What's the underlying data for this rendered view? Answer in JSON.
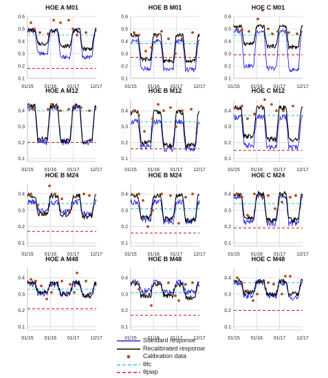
{
  "chart_data": {
    "type": "line",
    "layout_grid": "4 rows x 3 columns",
    "x_tick_labels": [
      "01/15",
      "01/16",
      "01/17",
      "12/17"
    ],
    "colors": {
      "standard": "#2020e0",
      "recalibrated": "#000000",
      "calibration": "#b4491c",
      "fc": "#40bfe0",
      "pwp": "#cc2020",
      "grid": "#c8c8c8"
    },
    "legend": [
      {
        "key": "standard",
        "label": "Standard response",
        "style": "solid-line"
      },
      {
        "key": "recalibrated",
        "label": "Recalibrated response",
        "style": "solid-line"
      },
      {
        "key": "calibration",
        "label": "Calibration data",
        "style": "dot"
      },
      {
        "key": "fc",
        "label": "θfc",
        "style": "dashed-line"
      },
      {
        "key": "pwp",
        "label": "θpwp",
        "style": "dashed-line"
      }
    ],
    "panels": [
      {
        "title": "HOE A M01",
        "yticks": [
          "0.6",
          "0.5",
          "0.4",
          "0.3",
          "0.2",
          "0.1"
        ],
        "ylim": [
          0.1,
          0.6
        ],
        "theta_fc": 0.45,
        "theta_pwp": 0.18,
        "standard": {
          "wet": 0.48,
          "dry": [
            0.3,
            0.27,
            0.27
          ]
        },
        "recalibrated": {
          "wet": 0.49,
          "dry": [
            0.38,
            0.36,
            0.34
          ]
        },
        "calibration": [
          [
            0.05,
            0.55
          ],
          [
            0.1,
            0.5
          ],
          [
            0.18,
            0.47
          ],
          [
            0.3,
            0.46
          ],
          [
            0.38,
            0.57
          ],
          [
            0.48,
            0.55
          ],
          [
            0.6,
            0.57
          ],
          [
            0.66,
            0.5
          ],
          [
            0.72,
            0.45
          ],
          [
            0.85,
            0.47
          ]
        ]
      },
      {
        "title": "HOE B M01",
        "yticks": [
          "0.6",
          "0.5",
          "0.4",
          "0.3",
          "0.2",
          "0.1"
        ],
        "ylim": [
          0.1,
          0.6
        ],
        "theta_fc": 0.38,
        "theta_pwp": 0.27,
        "standard": {
          "wet": 0.4,
          "dry": [
            0.18,
            0.17,
            0.17
          ]
        },
        "recalibrated": {
          "wet": 0.45,
          "dry": [
            0.25,
            0.24,
            0.24
          ]
        },
        "calibration": [
          [
            0.05,
            0.47
          ],
          [
            0.12,
            0.45
          ],
          [
            0.22,
            0.32
          ],
          [
            0.3,
            0.35
          ],
          [
            0.38,
            0.44
          ],
          [
            0.45,
            0.48
          ],
          [
            0.55,
            0.42
          ],
          [
            0.65,
            0.3
          ],
          [
            0.75,
            0.42
          ],
          [
            0.9,
            0.47
          ]
        ]
      },
      {
        "title": "HOE C M01",
        "yticks": [
          "0.6",
          "0.5",
          "0.4",
          "0.3",
          "0.2",
          "0.1"
        ],
        "ylim": [
          0.1,
          0.6
        ],
        "theta_fc": 0.45,
        "theta_pwp": 0.29,
        "standard": {
          "wet": 0.48,
          "dry": [
            0.2,
            0.18,
            0.17
          ]
        },
        "recalibrated": {
          "wet": 0.52,
          "dry": [
            0.38,
            0.36,
            0.35
          ]
        },
        "calibration": [
          [
            0.05,
            0.5
          ],
          [
            0.12,
            0.49
          ],
          [
            0.22,
            0.48
          ],
          [
            0.35,
            0.58
          ],
          [
            0.42,
            0.65
          ],
          [
            0.5,
            0.5
          ],
          [
            0.56,
            0.46
          ],
          [
            0.64,
            0.48
          ],
          [
            0.8,
            0.47
          ],
          [
            0.92,
            0.46
          ]
        ]
      },
      {
        "title": "HOE A M12",
        "yticks": [
          "0.4",
          "0.3",
          "0.2",
          "0.1"
        ],
        "ylim": [
          0.08,
          0.47
        ],
        "theta_fc": 0.4,
        "theta_pwp": 0.2,
        "standard": {
          "wet": 0.42,
          "dry": [
            0.2,
            0.2,
            0.2
          ]
        },
        "recalibrated": {
          "wet": 0.43,
          "dry": [
            0.22,
            0.21,
            0.21
          ]
        },
        "calibration": [
          [
            0.05,
            0.42
          ],
          [
            0.1,
            0.41
          ],
          [
            0.3,
            0.41
          ],
          [
            0.35,
            0.44
          ],
          [
            0.42,
            0.43
          ],
          [
            0.48,
            0.4
          ],
          [
            0.6,
            0.41
          ],
          [
            0.68,
            0.43
          ],
          [
            0.78,
            0.42
          ],
          [
            0.9,
            0.4
          ]
        ]
      },
      {
        "title": "HOE B M12",
        "yticks": [
          "0.4",
          "0.3",
          "0.2",
          "0.1"
        ],
        "ylim": [
          0.08,
          0.47
        ],
        "theta_fc": 0.33,
        "theta_pwp": 0.16,
        "standard": {
          "wet": 0.33,
          "dry": [
            0.17,
            0.16,
            0.16
          ]
        },
        "recalibrated": {
          "wet": 0.39,
          "dry": [
            0.2,
            0.18,
            0.18
          ]
        },
        "calibration": [
          [
            0.05,
            0.4
          ],
          [
            0.12,
            0.37
          ],
          [
            0.2,
            0.27
          ],
          [
            0.32,
            0.35
          ],
          [
            0.4,
            0.44
          ],
          [
            0.48,
            0.4
          ],
          [
            0.58,
            0.42
          ],
          [
            0.66,
            0.3
          ],
          [
            0.75,
            0.4
          ],
          [
            0.88,
            0.41
          ]
        ]
      },
      {
        "title": "HOE C M12",
        "yticks": [
          "0.4",
          "0.3",
          "0.2",
          "0.1"
        ],
        "ylim": [
          0.08,
          0.47
        ],
        "theta_fc": 0.37,
        "theta_pwp": 0.15,
        "standard": {
          "wet": 0.36,
          "dry": [
            0.18,
            0.17,
            0.17
          ]
        },
        "recalibrated": {
          "wet": 0.42,
          "dry": [
            0.24,
            0.22,
            0.22
          ]
        },
        "calibration": [
          [
            0.05,
            0.42
          ],
          [
            0.12,
            0.43
          ],
          [
            0.2,
            0.35
          ],
          [
            0.3,
            0.38
          ],
          [
            0.4,
            0.43
          ],
          [
            0.45,
            0.47
          ],
          [
            0.55,
            0.44
          ],
          [
            0.62,
            0.4
          ],
          [
            0.72,
            0.4
          ],
          [
            0.86,
            0.43
          ]
        ]
      },
      {
        "title": "HOE B M24",
        "yticks": [
          "0.4",
          "0.3",
          "0.2",
          "0.1"
        ],
        "ylim": [
          0.08,
          0.46
        ],
        "theta_fc": 0.34,
        "theta_pwp": 0.17,
        "standard": {
          "wet": 0.35,
          "dry": [
            0.3,
            0.29,
            0.28
          ]
        },
        "recalibrated": {
          "wet": 0.39,
          "dry": [
            0.28,
            0.27,
            0.26
          ]
        },
        "calibration": [
          [
            0.05,
            0.4
          ],
          [
            0.15,
            0.33
          ],
          [
            0.22,
            0.28
          ],
          [
            0.32,
            0.45
          ],
          [
            0.4,
            0.4
          ],
          [
            0.5,
            0.37
          ],
          [
            0.62,
            0.3
          ],
          [
            0.7,
            0.38
          ],
          [
            0.82,
            0.4
          ],
          [
            0.9,
            0.39
          ]
        ]
      },
      {
        "title": "HOE B M24",
        "yticks": [
          "0.4",
          "0.3",
          "0.2",
          "0.1"
        ],
        "ylim": [
          0.08,
          0.46
        ],
        "theta_fc": 0.31,
        "theta_pwp": 0.16,
        "standard": {
          "wet": 0.35,
          "dry": [
            0.24,
            0.23,
            0.23
          ]
        },
        "recalibrated": {
          "wet": 0.39,
          "dry": [
            0.26,
            0.25,
            0.24
          ]
        },
        "calibration": [
          [
            0.05,
            0.39
          ],
          [
            0.12,
            0.4
          ],
          [
            0.18,
            0.36
          ],
          [
            0.25,
            0.2
          ],
          [
            0.32,
            0.3
          ],
          [
            0.45,
            0.4
          ],
          [
            0.58,
            0.39
          ],
          [
            0.7,
            0.22
          ],
          [
            0.8,
            0.38
          ],
          [
            0.9,
            0.4
          ]
        ]
      },
      {
        "title": "HOE C M24",
        "yticks": [
          "0.4",
          "0.3",
          "0.2",
          "0.1"
        ],
        "ylim": [
          0.08,
          0.46
        ],
        "theta_fc": 0.34,
        "theta_pwp": 0.19,
        "standard": {
          "wet": 0.38,
          "dry": [
            0.23,
            0.22,
            0.22
          ]
        },
        "recalibrated": {
          "wet": 0.4,
          "dry": [
            0.25,
            0.24,
            0.24
          ]
        },
        "calibration": [
          [
            0.05,
            0.4
          ],
          [
            0.12,
            0.38
          ],
          [
            0.2,
            0.27
          ],
          [
            0.3,
            0.4
          ],
          [
            0.42,
            0.38
          ],
          [
            0.5,
            0.39
          ],
          [
            0.6,
            0.31
          ],
          [
            0.7,
            0.35
          ],
          [
            0.82,
            0.38
          ],
          [
            0.9,
            0.39
          ]
        ]
      },
      {
        "title": "HOE A M48",
        "yticks": [
          "0.4",
          "0.3",
          "0.2",
          "0.1"
        ],
        "ylim": [
          0.08,
          0.46
        ],
        "theta_fc": 0.33,
        "theta_pwp": 0.21,
        "standard": {
          "wet": 0.36,
          "dry": [
            0.3,
            0.3,
            0.3
          ]
        },
        "recalibrated": {
          "wet": 0.37,
          "dry": [
            0.31,
            0.3,
            0.29
          ]
        },
        "calibration": [
          [
            0.05,
            0.39
          ],
          [
            0.12,
            0.38
          ],
          [
            0.2,
            0.35
          ],
          [
            0.28,
            0.27
          ],
          [
            0.35,
            0.31
          ],
          [
            0.5,
            0.38
          ],
          [
            0.62,
            0.36
          ],
          [
            0.68,
            0.31
          ],
          [
            0.72,
            0.43
          ],
          [
            0.85,
            0.38
          ]
        ]
      },
      {
        "title": "HOE B M48",
        "yticks": [
          "0.4",
          "0.3",
          "0.2",
          "0.1"
        ],
        "ylim": [
          0.08,
          0.46
        ],
        "theta_fc": 0.31,
        "theta_pwp": 0.17,
        "standard": {
          "wet": 0.37,
          "dry": [
            0.32,
            0.31,
            0.31
          ]
        },
        "recalibrated": {
          "wet": 0.36,
          "dry": [
            0.29,
            0.29,
            0.28
          ]
        },
        "calibration": [
          [
            0.05,
            0.37
          ],
          [
            0.12,
            0.33
          ],
          [
            0.2,
            0.3
          ],
          [
            0.3,
            0.23
          ],
          [
            0.42,
            0.37
          ],
          [
            0.55,
            0.37
          ],
          [
            0.65,
            0.29
          ],
          [
            0.7,
            0.26
          ],
          [
            0.8,
            0.36
          ],
          [
            0.9,
            0.37
          ]
        ]
      },
      {
        "title": "HOE C M48",
        "yticks": [
          "0.4",
          "0.3",
          "0.2",
          "0.1"
        ],
        "ylim": [
          0.08,
          0.46
        ],
        "theta_fc": 0.37,
        "theta_pwp": 0.2,
        "standard": {
          "wet": 0.37,
          "dry": [
            0.29,
            0.29,
            0.28
          ]
        },
        "recalibrated": {
          "wet": 0.38,
          "dry": [
            0.31,
            0.3,
            0.3
          ]
        },
        "calibration": [
          [
            0.05,
            0.4
          ],
          [
            0.12,
            0.37
          ],
          [
            0.2,
            0.32
          ],
          [
            0.28,
            0.26
          ],
          [
            0.34,
            0.3
          ],
          [
            0.5,
            0.37
          ],
          [
            0.58,
            0.36
          ],
          [
            0.7,
            0.3
          ],
          [
            0.75,
            0.41
          ],
          [
            0.82,
            0.41
          ]
        ]
      }
    ]
  }
}
